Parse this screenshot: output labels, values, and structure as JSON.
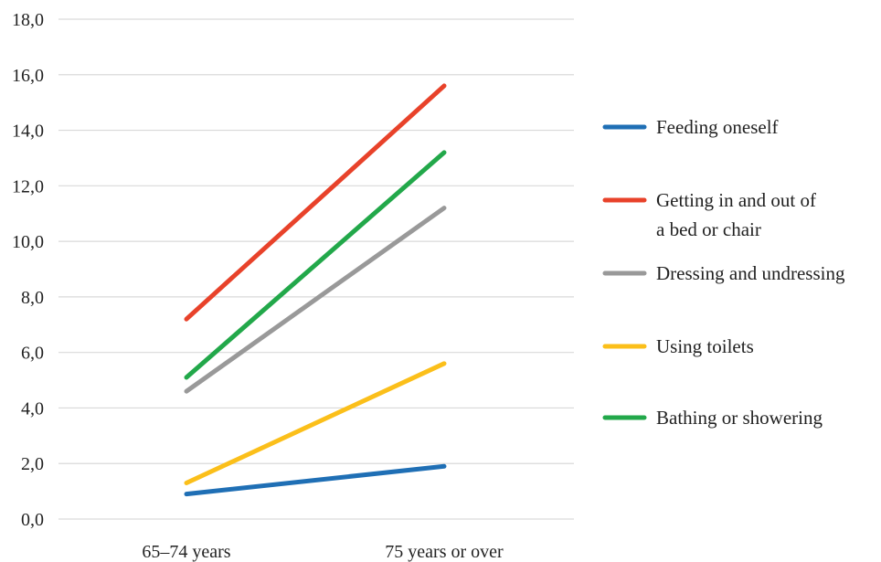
{
  "chart_data": {
    "type": "line",
    "categories": [
      "65–74 years",
      "75 years or over"
    ],
    "ylim": [
      0,
      18
    ],
    "yticks": [
      "0,0",
      "2,0",
      "4,0",
      "6,0",
      "8,0",
      "10,0",
      "12,0",
      "14,0",
      "16,0",
      "18,0"
    ],
    "grid": true,
    "legend_position": "right",
    "series": [
      {
        "name": "Feeding oneself",
        "values": [
          0.9,
          1.9
        ],
        "color": "#1f6fb5"
      },
      {
        "name": "Getting in and out of a bed or chair",
        "name_lines": [
          "Getting in and out of",
          "a bed or chair"
        ],
        "values": [
          7.2,
          15.6
        ],
        "color": "#e8422a"
      },
      {
        "name": "Dressing and undressing",
        "values": [
          4.6,
          11.2
        ],
        "color": "#999999"
      },
      {
        "name": "Using toilets",
        "values": [
          1.3,
          5.6
        ],
        "color": "#fbbf1a"
      },
      {
        "name": "Bathing or showering",
        "values": [
          5.1,
          13.2
        ],
        "color": "#22a84a"
      }
    ]
  }
}
